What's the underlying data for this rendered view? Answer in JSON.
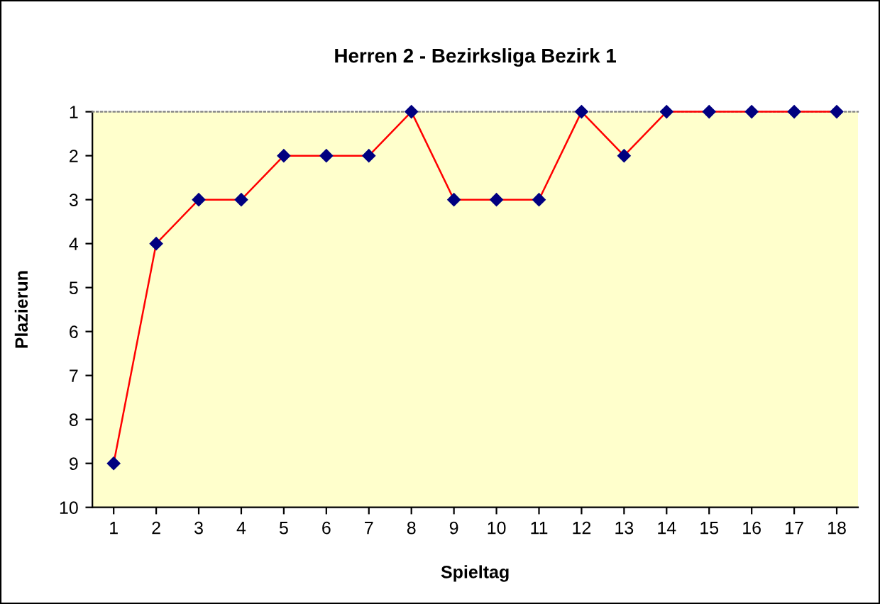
{
  "chart_data": {
    "type": "line",
    "title": "Herren 2 - Bezirksliga Bezirk 1",
    "xlabel": "Spieltag",
    "ylabel": "Plazierun",
    "categories": [
      "1",
      "2",
      "3",
      "4",
      "5",
      "6",
      "7",
      "8",
      "9",
      "10",
      "11",
      "12",
      "13",
      "14",
      "15",
      "16",
      "17",
      "18"
    ],
    "series": [
      {
        "color": "#ff0000",
        "values": [
          9,
          4,
          3,
          3,
          2,
          2,
          2,
          1,
          3,
          3,
          3,
          1,
          2,
          1,
          1,
          1,
          1,
          1
        ]
      }
    ],
    "ylim": [
      10,
      1
    ],
    "yticks": [
      1,
      2,
      3,
      4,
      5,
      6,
      7,
      8,
      9,
      10
    ],
    "grid": false,
    "legend": false,
    "marker": "diamond",
    "line_style": "solid"
  }
}
